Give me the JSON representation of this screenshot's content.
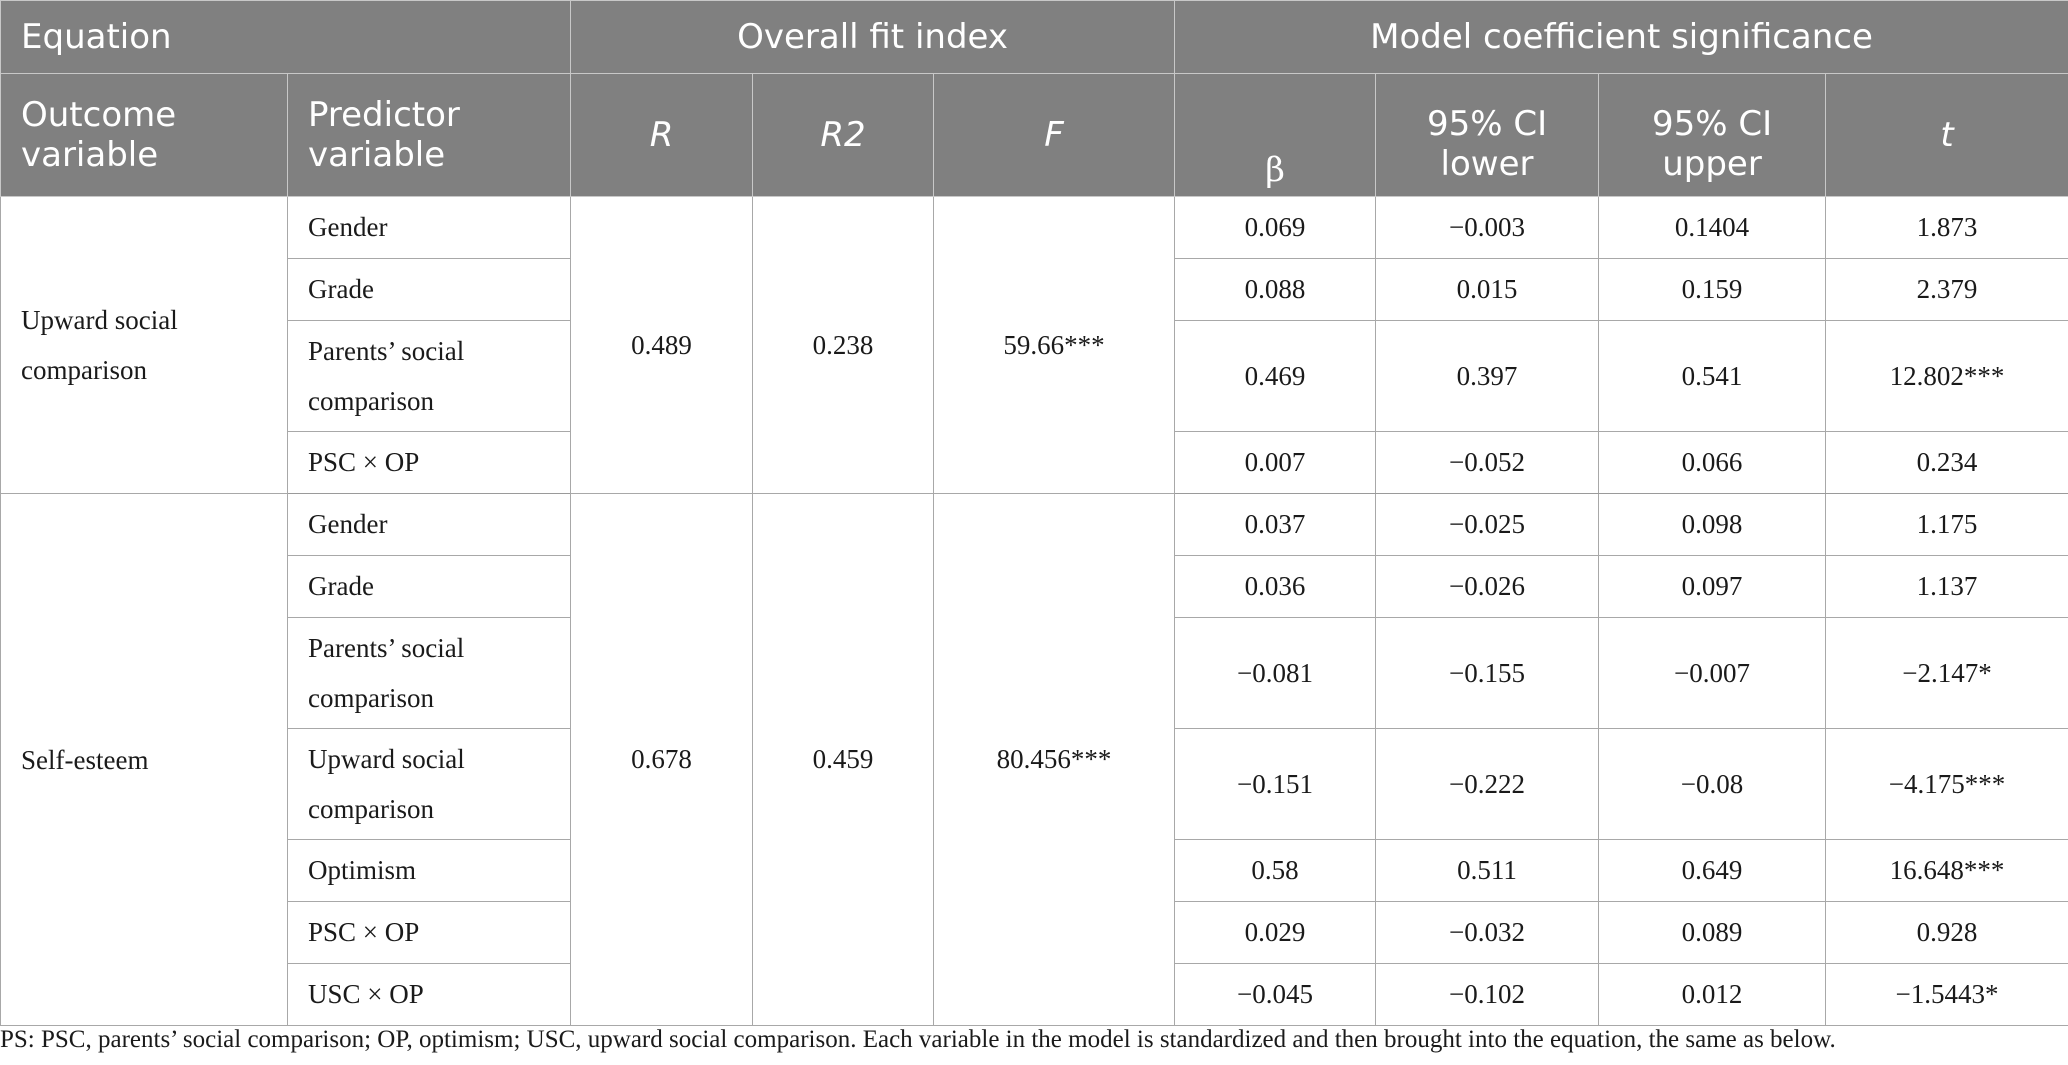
{
  "header": {
    "equation": "Equation",
    "overall_fit": "Overall fit index",
    "model_coef": "Model coefficient significance",
    "outcome": "Outcome variable",
    "predictor": "Predictor variable",
    "r": "R",
    "r2": "R2",
    "f": "F",
    "beta": "β",
    "ci_lower": "95% CI lower",
    "ci_upper": "95% CI upper",
    "t": "t"
  },
  "groups": [
    {
      "outcome": "Upward social comparison",
      "R": "0.489",
      "R2": "0.238",
      "F": "59.66***",
      "rows": [
        {
          "predictor": "Gender",
          "beta": "0.069",
          "lower": "−0.003",
          "upper": "0.1404",
          "t": "1.873"
        },
        {
          "predictor": "Grade",
          "beta": "0.088",
          "lower": "0.015",
          "upper": "0.159",
          "t": "2.379"
        },
        {
          "predictor": "Parents’ social comparison",
          "beta": "0.469",
          "lower": "0.397",
          "upper": "0.541",
          "t": "12.802***"
        },
        {
          "predictor": "PSC × OP",
          "beta": "0.007",
          "lower": "−0.052",
          "upper": "0.066",
          "t": "0.234"
        }
      ]
    },
    {
      "outcome": "Self-esteem",
      "R": "0.678",
      "R2": "0.459",
      "F": "80.456***",
      "rows": [
        {
          "predictor": "Gender",
          "beta": "0.037",
          "lower": "−0.025",
          "upper": "0.098",
          "t": "1.175"
        },
        {
          "predictor": "Grade",
          "beta": "0.036",
          "lower": "−0.026",
          "upper": "0.097",
          "t": "1.137"
        },
        {
          "predictor": "Parents’ social comparison",
          "beta": "−0.081",
          "lower": "−0.155",
          "upper": "−0.007",
          "t": "−2.147*"
        },
        {
          "predictor": "Upward social comparison",
          "beta": "−0.151",
          "lower": "−0.222",
          "upper": "−0.08",
          "t": "−4.175***"
        },
        {
          "predictor": "Optimism",
          "beta": "0.58",
          "lower": "0.511",
          "upper": "0.649",
          "t": "16.648***"
        },
        {
          "predictor": "PSC × OP",
          "beta": "0.029",
          "lower": "−0.032",
          "upper": "0.089",
          "t": "0.928"
        },
        {
          "predictor": "USC × OP",
          "beta": "−0.045",
          "lower": "−0.102",
          "upper": "0.012",
          "t": "−1.5443*"
        }
      ]
    }
  ],
  "note": "PS: PSC, parents’ social comparison; OP, optimism; USC, upward social comparison. Each variable in the model is standardized and then brought into the equation, the same as below."
}
